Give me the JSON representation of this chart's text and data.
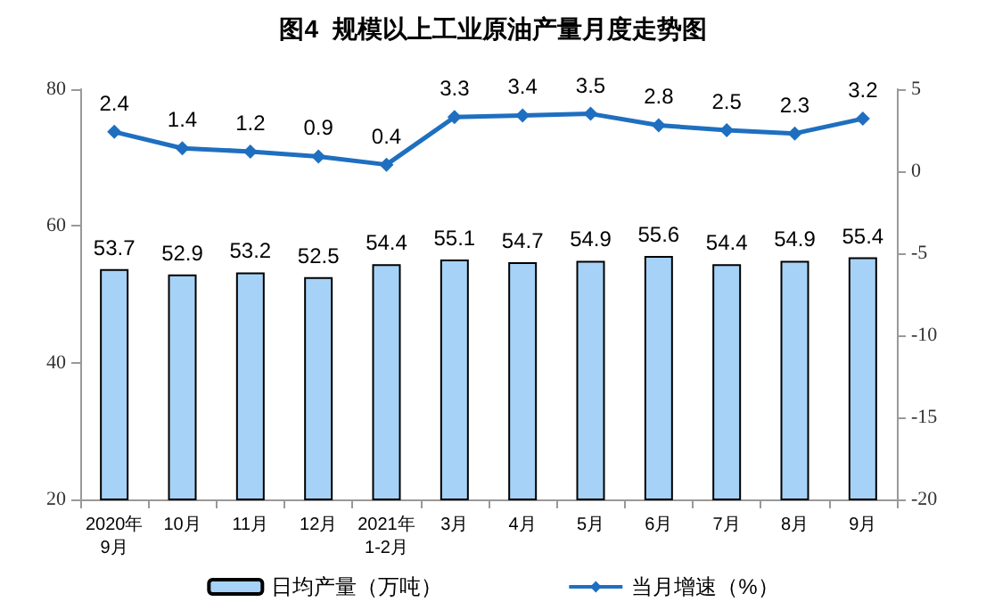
{
  "chart_data": {
    "type": "bar",
    "title": "图4  规模以上工业原油产量月度走势图",
    "categories": [
      "2020年\n9月",
      "10月",
      "11月",
      "12月",
      "2021年\n1-2月",
      "3月",
      "4月",
      "5月",
      "6月",
      "7月",
      "8月",
      "9月"
    ],
    "series": [
      {
        "name": "日均产量（万吨）",
        "color": "#a6d2f7",
        "values": [
          53.7,
          52.9,
          53.2,
          52.5,
          54.4,
          55.1,
          54.7,
          54.9,
          55.6,
          54.4,
          54.9,
          55.4
        ]
      },
      {
        "name": "当月增速（%）",
        "type": "line",
        "axis": "y2",
        "color": "#1f6fc0",
        "marker": "diamond",
        "values": [
          2.4,
          1.4,
          1.2,
          0.9,
          0.4,
          3.3,
          3.4,
          3.5,
          2.8,
          2.5,
          2.3,
          3.2
        ]
      }
    ],
    "ylim": [
      20,
      80
    ],
    "yticks": [
      20,
      40,
      60,
      80
    ],
    "y2lim": [
      -20,
      5
    ],
    "y2ticks": [
      -20,
      -15,
      -10,
      -5,
      0,
      5
    ],
    "data_labels": true,
    "legend": "bottom",
    "grid": false
  }
}
